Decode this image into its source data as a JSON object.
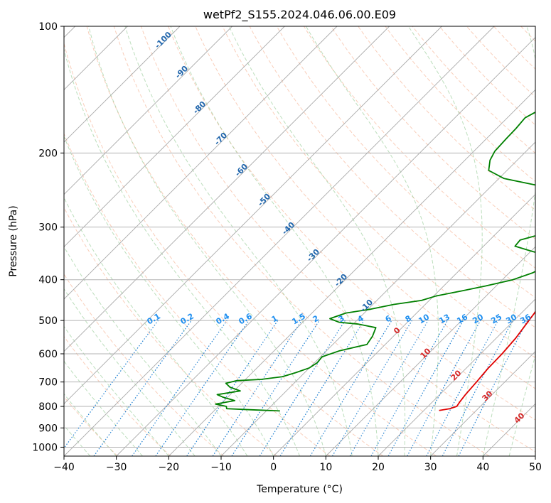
{
  "chart_data": {
    "type": "line",
    "subtype": "skew-t log-p",
    "title": "wetPf2_S155.2024.046.06.00.E09",
    "xlabel": "Temperature (°C)",
    "ylabel": "Pressure (hPa)",
    "xlim": [
      -40,
      50
    ],
    "ylim": [
      1050,
      100
    ],
    "y_scale": "log",
    "x_ticks": [
      -40,
      -30,
      -20,
      -10,
      0,
      10,
      20,
      30,
      40,
      50
    ],
    "x_tick_labels": [
      "−40",
      "−30",
      "−20",
      "−10",
      "0",
      "10",
      "20",
      "30",
      "40",
      "50"
    ],
    "y_ticks": [
      100,
      200,
      300,
      400,
      500,
      600,
      700,
      800,
      900,
      1000
    ],
    "y_tick_labels": [
      "100",
      "200",
      "300",
      "400",
      "500",
      "600",
      "700",
      "800",
      "900",
      "1000"
    ],
    "grid": true,
    "series": [
      {
        "color": "#e00000",
        "points": [
          [
            22.9,
            818
          ],
          [
            24.6,
            810
          ],
          [
            25.5,
            800
          ],
          [
            25.2,
            780
          ],
          [
            24.9,
            750
          ],
          [
            24.6,
            700
          ],
          [
            24.2,
            650
          ],
          [
            24.1,
            600
          ],
          [
            23.7,
            550
          ],
          [
            23.2,
            520
          ],
          [
            22.5,
            480
          ],
          [
            21.6,
            450
          ],
          [
            20.0,
            420
          ],
          [
            17.5,
            390
          ],
          [
            15.0,
            365
          ],
          [
            12.8,
            345
          ],
          [
            10.6,
            325
          ],
          [
            9.2,
            305
          ],
          [
            8.7,
            280
          ],
          [
            7.2,
            255
          ],
          [
            6.2,
            240
          ],
          [
            6.0,
            225
          ],
          [
            5.9,
            210
          ],
          [
            5.6,
            195
          ],
          [
            4.9,
            180
          ],
          [
            3.7,
            165
          ],
          [
            3.3,
            150
          ],
          [
            2.8,
            135
          ],
          [
            2.9,
            120
          ],
          [
            4.6,
            110
          ],
          [
            6.5,
            100
          ]
        ]
      },
      {
        "color": "#008000",
        "points": [
          [
            -7.4,
            820
          ],
          [
            -13.0,
            815
          ],
          [
            -18.0,
            810
          ],
          [
            -18.5,
            800
          ],
          [
            -21.0,
            790
          ],
          [
            -18.0,
            775
          ],
          [
            -21.0,
            760
          ],
          [
            -22.5,
            750
          ],
          [
            -18.8,
            735
          ],
          [
            -21.5,
            720
          ],
          [
            -23.0,
            705
          ],
          [
            -21.5,
            695
          ],
          [
            -17.0,
            690
          ],
          [
            -13.5,
            680
          ],
          [
            -11.7,
            665
          ],
          [
            -10.0,
            648
          ],
          [
            -9.5,
            630
          ],
          [
            -9.7,
            610
          ],
          [
            -7.5,
            590
          ],
          [
            -3.5,
            570
          ],
          [
            -4.0,
            545
          ],
          [
            -5.0,
            520
          ],
          [
            -9.0,
            510
          ],
          [
            -13.0,
            505
          ],
          [
            -15.5,
            495
          ],
          [
            -13.5,
            480
          ],
          [
            -9.5,
            470
          ],
          [
            -6.0,
            458
          ],
          [
            -1.5,
            448
          ],
          [
            0.5,
            437
          ],
          [
            4.5,
            425
          ],
          [
            8.0,
            414
          ],
          [
            12.0,
            400
          ],
          [
            14.5,
            385
          ],
          [
            16.0,
            365
          ],
          [
            14.5,
            352
          ],
          [
            10.0,
            342
          ],
          [
            6.0,
            333
          ],
          [
            5.8,
            322
          ],
          [
            9.0,
            311
          ],
          [
            12.0,
            298
          ],
          [
            12.0,
            285
          ],
          [
            11.0,
            270
          ],
          [
            9.0,
            258
          ],
          [
            5.0,
            248
          ],
          [
            -2.0,
            238
          ],
          [
            -9.0,
            230
          ],
          [
            -13.5,
            220
          ],
          [
            -15.2,
            208
          ],
          [
            -16.0,
            198
          ],
          [
            -16.2,
            185
          ],
          [
            -16.3,
            175
          ],
          [
            -16.6,
            165
          ],
          [
            -14.8,
            155
          ],
          [
            -12.2,
            145
          ],
          [
            -11.4,
            135
          ],
          [
            -10.9,
            130
          ],
          [
            -10.2,
            120
          ],
          [
            -9.0,
            115
          ],
          [
            -6.8,
            110
          ],
          [
            -4.6,
            105
          ],
          [
            -2.6,
            100
          ]
        ]
      }
    ],
    "mixing_ratio_labels": [
      "0.1",
      "0.2",
      "0.4",
      "0.6",
      "1",
      "1.5",
      "2",
      "3",
      "4",
      "6",
      "8",
      "10",
      "13",
      "16",
      "20",
      "25",
      "30",
      "36"
    ],
    "mixing_ratio_values": [
      0.1,
      0.2,
      0.4,
      0.6,
      1,
      1.5,
      2,
      3,
      4,
      6,
      8,
      10,
      13,
      16,
      20,
      25,
      30,
      36
    ],
    "dry_adiabat_labels": [
      "-100",
      "-90",
      "-80",
      "-70",
      "-60",
      "-50",
      "-40",
      "-30",
      "-20",
      "-10"
    ],
    "moist_adiabat_labels": [
      "0",
      "10",
      "20",
      "30",
      "40"
    ],
    "colors": {
      "temperature": "#e00000",
      "dewpoint": "#008000",
      "isotherm": "#a9a9a9",
      "isobar": "#b3b3b3",
      "dry_adiabat": "#f4a582",
      "moist_adiabat": "#98cc98",
      "mixing_ratio": "#1e7fd0",
      "dry_label": "#2166ac",
      "mixing_label": "#1f8ff0",
      "moist_label": "#d62728"
    }
  }
}
